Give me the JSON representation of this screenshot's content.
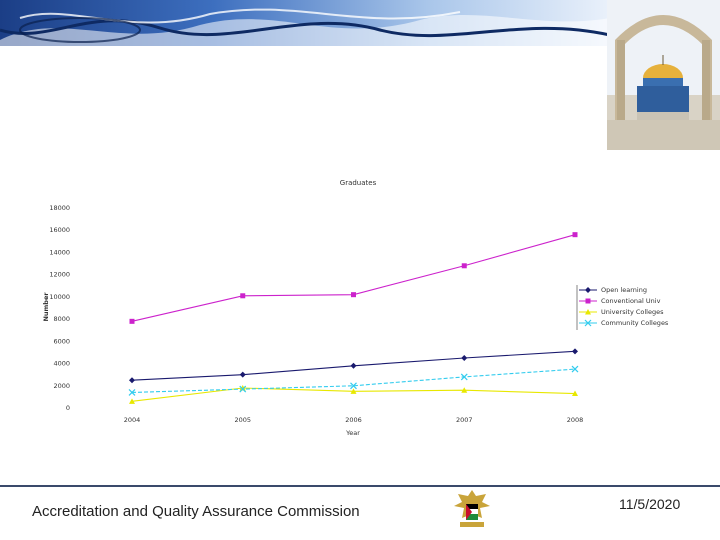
{
  "footer": {
    "org_name": "Accreditation and Quality Assurance Commission",
    "date": "11/5/2020"
  },
  "images": {
    "top_photo": "dome-of-the-rock-photo",
    "emblem": "palestinian-eagle-emblem"
  },
  "chart_data": {
    "type": "line",
    "title": "Graduates",
    "xlabel": "Year",
    "ylabel": "Number",
    "categories": [
      "2004",
      "2005",
      "2006",
      "2007",
      "2008"
    ],
    "ylim": [
      0,
      18000
    ],
    "yticks": [
      0,
      2000,
      4000,
      6000,
      8000,
      10000,
      12000,
      14000,
      16000,
      18000
    ],
    "ytick_labels": [
      "0",
      "2000",
      "4000",
      "6000",
      "8000",
      "10000",
      "12000",
      "14000",
      "16000",
      "18000"
    ],
    "legend_position": "right",
    "series": [
      {
        "name": "Open learning",
        "values": [
          2500,
          3000,
          3800,
          4500,
          5100
        ],
        "color": "#1a1a6e",
        "marker": "diamond"
      },
      {
        "name": "Conventional Univ",
        "values": [
          7800,
          10100,
          10200,
          12800,
          15600
        ],
        "color": "#cc22cc",
        "marker": "square"
      },
      {
        "name": "University Colleges",
        "values": [
          600,
          1800,
          1500,
          1600,
          1300
        ],
        "color": "#e8e800",
        "marker": "triangle"
      },
      {
        "name": "Community Colleges",
        "values": [
          1400,
          1700,
          2000,
          2800,
          3500
        ],
        "color": "#33ccee",
        "marker": "x"
      }
    ]
  }
}
